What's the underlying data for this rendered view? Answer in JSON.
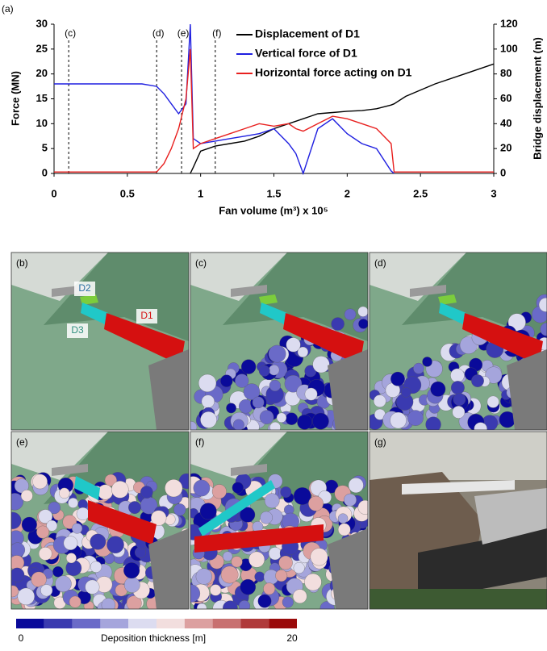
{
  "chart_data": {
    "type": "line",
    "panel_label": "(a)",
    "xlabel": "Fan volume (m³) x 10⁵",
    "ylabel": "Force (MN)",
    "y2label": "Bridge displacement (m)",
    "x": [
      0,
      0.2,
      0.4,
      0.6,
      0.7,
      0.75,
      0.8,
      0.85,
      0.9,
      0.93,
      0.95,
      1.0,
      1.1,
      1.2,
      1.3,
      1.4,
      1.5,
      1.6,
      1.65,
      1.7,
      1.8,
      1.9,
      2.0,
      2.1,
      2.2,
      2.3,
      2.32,
      2.4,
      2.6,
      2.8,
      3.0
    ],
    "series": [
      {
        "name": "Displacement of D1",
        "color": "#000000",
        "axis": "y2",
        "values": [
          null,
          null,
          null,
          null,
          null,
          null,
          null,
          null,
          null,
          0,
          5,
          18,
          22,
          24,
          26,
          30,
          36,
          40,
          42,
          44,
          48,
          49,
          50,
          50.5,
          52,
          55,
          56,
          62,
          72,
          80,
          88
        ]
      },
      {
        "name": "Vertical force of D1",
        "color": "#1f1fe0",
        "values": [
          18,
          18,
          18,
          18,
          17.5,
          16,
          14,
          12,
          14,
          30,
          7,
          6,
          6.5,
          7,
          7.5,
          8,
          9,
          6,
          4,
          0,
          9,
          11,
          8,
          6,
          5,
          0.5,
          0,
          null,
          null,
          null,
          null
        ]
      },
      {
        "name": "Horizontal force acting on D1",
        "color": "#e8201f",
        "values": [
          0.3,
          0.3,
          0.3,
          0.3,
          0.3,
          2,
          5,
          9,
          15,
          25,
          5,
          6,
          7,
          8,
          9,
          10,
          9.5,
          10,
          9,
          8.5,
          10,
          11.5,
          11,
          10,
          9,
          6,
          0.3,
          0.3,
          0.3,
          0.3,
          0.3
        ]
      }
    ],
    "xlim": [
      0,
      3
    ],
    "xticks": [
      0,
      0.5,
      1,
      1.5,
      2,
      2.5,
      3
    ],
    "ylim": [
      0,
      30
    ],
    "yticks": [
      0,
      5,
      10,
      15,
      20,
      25,
      30
    ],
    "y2lim": [
      0,
      120
    ],
    "y2ticks": [
      0,
      20,
      40,
      60,
      80,
      100,
      120
    ],
    "markers": [
      {
        "x": 0.1,
        "label": "(c)"
      },
      {
        "x": 0.7,
        "label": "(d)"
      },
      {
        "x": 0.87,
        "label": "(e)"
      },
      {
        "x": 1.1,
        "label": "(f)"
      }
    ]
  },
  "panels": [
    {
      "label": "(b)"
    },
    {
      "label": "(c)"
    },
    {
      "label": "(d)"
    },
    {
      "label": "(e)"
    },
    {
      "label": "(f)"
    },
    {
      "label": "(g)"
    }
  ],
  "panel_b_labels": [
    "D2",
    "D3",
    "D1"
  ],
  "colorbar": {
    "min": 0,
    "max": 20,
    "label": "Deposition thickness [m]",
    "colors": [
      "#0a0a9a",
      "#3a3ab0",
      "#6a6ac8",
      "#a5a5dc",
      "#dcdcf0",
      "#f2dede",
      "#dca0a0",
      "#c87070",
      "#b03a3a",
      "#9a0a0a"
    ]
  }
}
